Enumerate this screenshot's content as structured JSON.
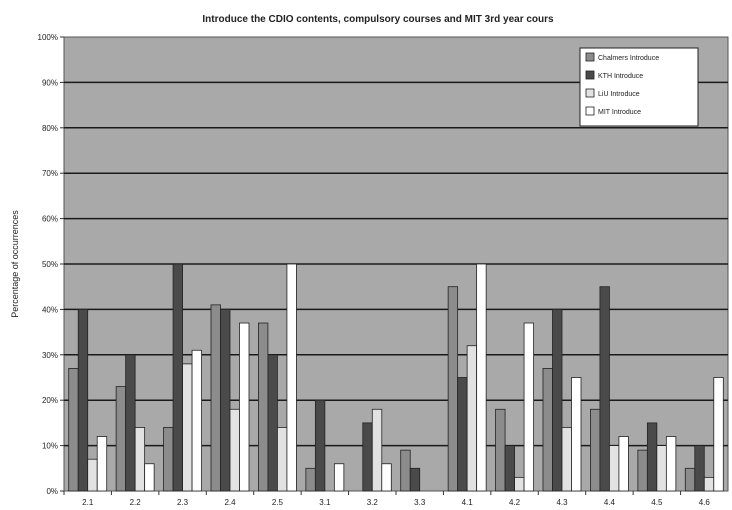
{
  "chart_data": {
    "type": "bar",
    "title": "Introduce the CDIO contents, compulsory courses and MIT 3rd year cours",
    "xlabel": "",
    "ylabel": "Percentage of occurrences",
    "ylim": [
      0,
      100
    ],
    "yticks": [
      "0%",
      "10%",
      "20%",
      "30%",
      "40%",
      "50%",
      "60%",
      "70%",
      "80%",
      "90%",
      "100%"
    ],
    "categories": [
      "2.1",
      "2.2",
      "2.3",
      "2.4",
      "2.5",
      "3.1",
      "3.2",
      "3.3",
      "4.1",
      "4.2",
      "4.3",
      "4.4",
      "4.5",
      "4.6"
    ],
    "series": [
      {
        "name": "Chalmers Introduce",
        "color": "#8c8c8c",
        "values": [
          27,
          23,
          14,
          41,
          37,
          5,
          0,
          9,
          45,
          18,
          27,
          18,
          9,
          5
        ]
      },
      {
        "name": "KTH Introduce",
        "color": "#4a4a4a",
        "values": [
          40,
          30,
          50,
          40,
          30,
          20,
          15,
          5,
          25,
          10,
          40,
          45,
          15,
          10
        ]
      },
      {
        "name": "LiU Introduce",
        "color": "#e2e2e2",
        "values": [
          7,
          14,
          28,
          18,
          14,
          0,
          18,
          0,
          32,
          3,
          14,
          10,
          10,
          3
        ]
      },
      {
        "name": "MIT Introduce",
        "color": "#ffffff",
        "values": [
          12,
          6,
          31,
          37,
          50,
          6,
          6,
          0,
          50,
          37,
          25,
          12,
          12,
          25
        ]
      }
    ],
    "grid": true,
    "legend_position": "top-right",
    "plot_background": "#a9a9a9"
  }
}
